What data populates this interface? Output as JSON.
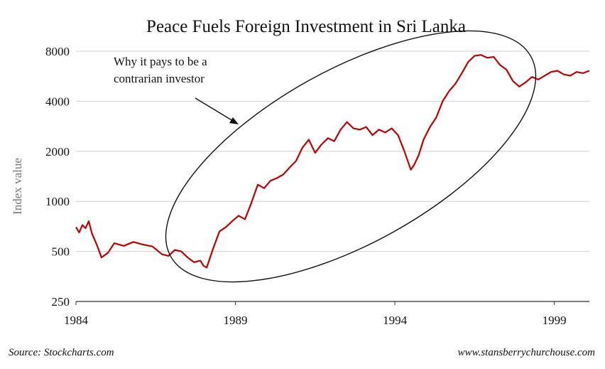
{
  "chart_data": {
    "type": "line",
    "title": "Peace Fuels Foreign Investment in Sri Lanka",
    "ylabel": "Index value",
    "xlabel": "",
    "yscale": "log",
    "ylim": [
      250,
      8000
    ],
    "xlim": [
      1984.0,
      2000.1
    ],
    "yticks": [
      250,
      500,
      1000,
      2000,
      4000,
      8000
    ],
    "xticks": [
      1984,
      1989,
      1994,
      1999
    ],
    "grid": "horizontal",
    "annotation": {
      "text_lines": [
        "Why it pays to be a",
        "contrarian investor"
      ],
      "shape": "ellipse with arrow"
    },
    "series": [
      {
        "color": "#c00000",
        "x": [
          1984.0,
          1984.1,
          1984.2,
          1984.3,
          1984.4,
          1984.5,
          1984.6,
          1984.7,
          1984.8,
          1985.0,
          1985.2,
          1985.5,
          1985.8,
          1986.1,
          1986.4,
          1986.7,
          1986.9,
          1987.1,
          1987.3,
          1987.5,
          1987.7,
          1987.9,
          1988.0,
          1988.1,
          1988.3,
          1988.5,
          1988.7,
          1988.9,
          1989.1,
          1989.3,
          1989.5,
          1989.7,
          1989.9,
          1990.1,
          1990.3,
          1990.5,
          1990.7,
          1990.9,
          1991.1,
          1991.3,
          1991.5,
          1991.7,
          1991.9,
          1992.1,
          1992.3,
          1992.5,
          1992.7,
          1992.9,
          1993.1,
          1993.3,
          1993.5,
          1993.7,
          1993.9,
          1994.1,
          1994.3,
          1994.5,
          1994.6,
          1994.75,
          1994.9,
          1995.1,
          1995.3,
          1995.5,
          1995.7,
          1995.9,
          1996.1,
          1996.3,
          1996.5,
          1996.7,
          1996.9,
          1997.1,
          1997.3,
          1997.5,
          1997.7,
          1997.9,
          1998.1,
          1998.3,
          1998.5,
          1998.7,
          1998.9,
          1999.1,
          1999.3,
          1999.5,
          1999.7,
          1999.9,
          2000.1
        ],
        "values": [
          700,
          650,
          720,
          690,
          760,
          640,
          580,
          520,
          460,
          490,
          560,
          540,
          570,
          550,
          535,
          480,
          470,
          510,
          500,
          460,
          430,
          440,
          410,
          400,
          520,
          660,
          700,
          760,
          820,
          780,
          980,
          1260,
          1200,
          1330,
          1380,
          1450,
          1600,
          1750,
          2100,
          2350,
          1960,
          2200,
          2400,
          2300,
          2700,
          3000,
          2750,
          2700,
          2800,
          2500,
          2700,
          2600,
          2750,
          2500,
          2000,
          1550,
          1650,
          1900,
          2350,
          2800,
          3200,
          4000,
          4600,
          5100,
          5900,
          6900,
          7500,
          7600,
          7300,
          7400,
          6600,
          6200,
          5300,
          4900,
          5200,
          5600,
          5400,
          5700,
          6000,
          6100,
          5800,
          5700,
          6000,
          5900,
          6100
        ]
      }
    ]
  },
  "footer": {
    "source": "Source: Stockcharts.com",
    "website": "www.stansberrychurchouse.com"
  }
}
